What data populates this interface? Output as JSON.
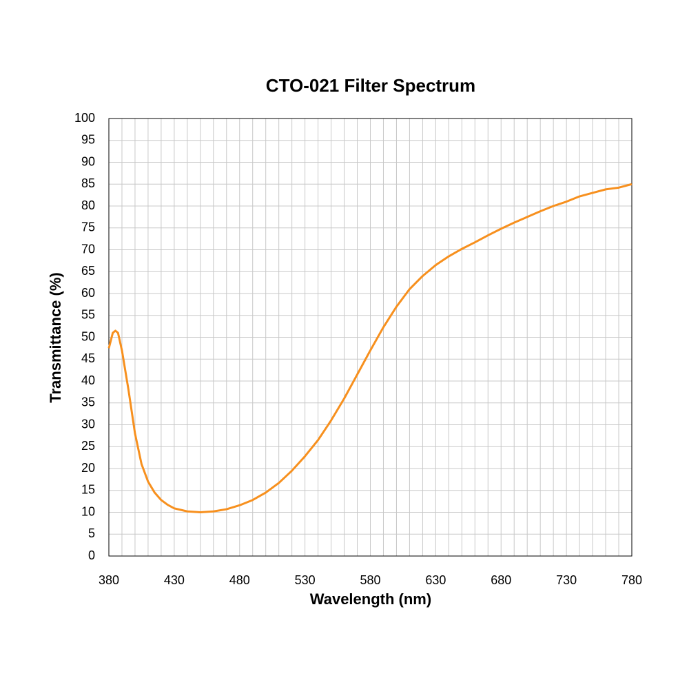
{
  "chart_data": {
    "type": "line",
    "title": "CTO-021 Filter Spectrum",
    "x_label": "Wavelength (nm)",
    "y_label": "Transmittance (%)",
    "x": [
      380,
      383,
      385,
      387,
      390,
      395,
      400,
      405,
      410,
      415,
      420,
      425,
      430,
      440,
      450,
      460,
      470,
      480,
      490,
      500,
      510,
      520,
      530,
      540,
      550,
      560,
      570,
      580,
      590,
      600,
      610,
      620,
      630,
      640,
      650,
      660,
      670,
      680,
      690,
      700,
      710,
      720,
      730,
      740,
      750,
      760,
      770,
      780
    ],
    "values": [
      47.5,
      51,
      51.5,
      51,
      47,
      38,
      28,
      21,
      17,
      14.5,
      12.8,
      11.7,
      10.9,
      10.2,
      10,
      10.2,
      10.7,
      11.6,
      12.8,
      14.5,
      16.7,
      19.5,
      22.8,
      26.5,
      31,
      36,
      41.5,
      47,
      52.3,
      57,
      61,
      64,
      66.5,
      68.5,
      70.2,
      71.7,
      73.3,
      74.8,
      76.2,
      77.5,
      78.8,
      80,
      81,
      82.2,
      83,
      83.8,
      84.2,
      85
    ],
    "color": "#f7901e",
    "xlim": [
      380,
      780
    ],
    "xticks": [
      380,
      430,
      480,
      530,
      580,
      630,
      680,
      730,
      780
    ],
    "x_minor_grid": [
      390,
      400,
      410,
      420,
      440,
      450,
      460,
      470,
      490,
      500,
      510,
      520,
      540,
      550,
      560,
      570,
      590,
      600,
      610,
      620,
      640,
      650,
      660,
      670,
      690,
      700,
      710,
      720,
      740,
      750,
      760,
      770
    ],
    "ylim": [
      0,
      100
    ],
    "yticks": [
      0,
      5,
      10,
      15,
      20,
      25,
      30,
      35,
      40,
      45,
      50,
      55,
      60,
      65,
      70,
      75,
      80,
      85,
      90,
      95,
      100
    ],
    "grid": true
  }
}
